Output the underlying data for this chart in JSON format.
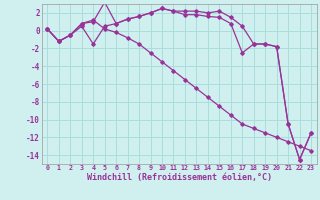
{
  "xlabel": "Windchill (Refroidissement éolien,°C)",
  "bg_color": "#cff0ef",
  "grid_color": "#aadddd",
  "line_color": "#993399",
  "xlim": [
    -0.5,
    23.5
  ],
  "ylim": [
    -15,
    3
  ],
  "yticks": [
    2,
    0,
    -2,
    -4,
    -6,
    -8,
    -10,
    -12,
    -14
  ],
  "xticks": [
    0,
    1,
    2,
    3,
    4,
    5,
    6,
    7,
    8,
    9,
    10,
    11,
    12,
    13,
    14,
    15,
    16,
    17,
    18,
    19,
    20,
    21,
    22,
    23
  ],
  "line1": [
    0.2,
    -1.2,
    -0.5,
    0.8,
    1.0,
    3.2,
    0.8,
    1.3,
    1.6,
    2.0,
    2.5,
    2.2,
    2.2,
    2.2,
    2.0,
    2.2,
    1.5,
    0.5,
    -1.5,
    -1.5,
    -1.8,
    -10.5,
    -14.5,
    -11.5
  ],
  "line2": [
    0.2,
    -1.2,
    -0.5,
    0.5,
    -1.5,
    0.5,
    0.8,
    1.3,
    1.6,
    2.0,
    2.5,
    2.2,
    1.8,
    1.8,
    1.6,
    1.5,
    0.8,
    -2.5,
    -1.5,
    -1.5,
    -1.8,
    -10.5,
    -14.5,
    -11.5
  ],
  "line3": [
    0.2,
    -1.2,
    -0.5,
    0.8,
    1.2,
    0.2,
    -0.2,
    -0.8,
    -1.5,
    -2.5,
    -3.5,
    -4.5,
    -5.5,
    -6.5,
    -7.5,
    -8.5,
    -9.5,
    -10.5,
    -11.0,
    -11.5,
    -12.0,
    -12.5,
    -13.0,
    -13.5
  ]
}
